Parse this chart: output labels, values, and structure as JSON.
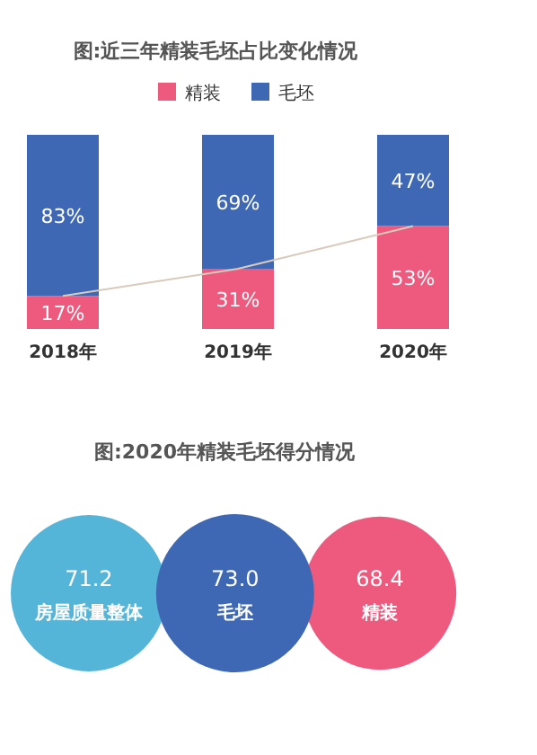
{
  "chart_data": [
    {
      "type": "bar",
      "title": "图:近三年精装毛坯占比变化情况",
      "categories": [
        "2018年",
        "2019年",
        "2020年"
      ],
      "stacked": true,
      "legend": "top",
      "series": [
        {
          "name": "精装",
          "color": "#ee5a7e",
          "values": [
            17,
            31,
            53
          ],
          "value_labels": [
            "17%",
            "31%",
            "53%"
          ]
        },
        {
          "name": "毛坯",
          "color": "#3f68b4",
          "values": [
            83,
            69,
            47
          ],
          "value_labels": [
            "83%",
            "69%",
            "47%"
          ]
        },
        {
          "type": "line",
          "color": "#d9cbbb",
          "values": [
            17,
            31,
            53
          ]
        }
      ]
    },
    {
      "type": "other",
      "title": "图:2020年精装毛坯得分情况",
      "categories": [
        "房屋质量整体",
        "毛坯",
        "精装"
      ],
      "values": [
        71.2,
        73.0,
        68.4
      ],
      "value_labels": [
        "71.2",
        "73.0",
        "68.4"
      ],
      "colors": [
        "#55b5d8",
        "#3f68b4",
        "#ee5a7e"
      ]
    }
  ]
}
